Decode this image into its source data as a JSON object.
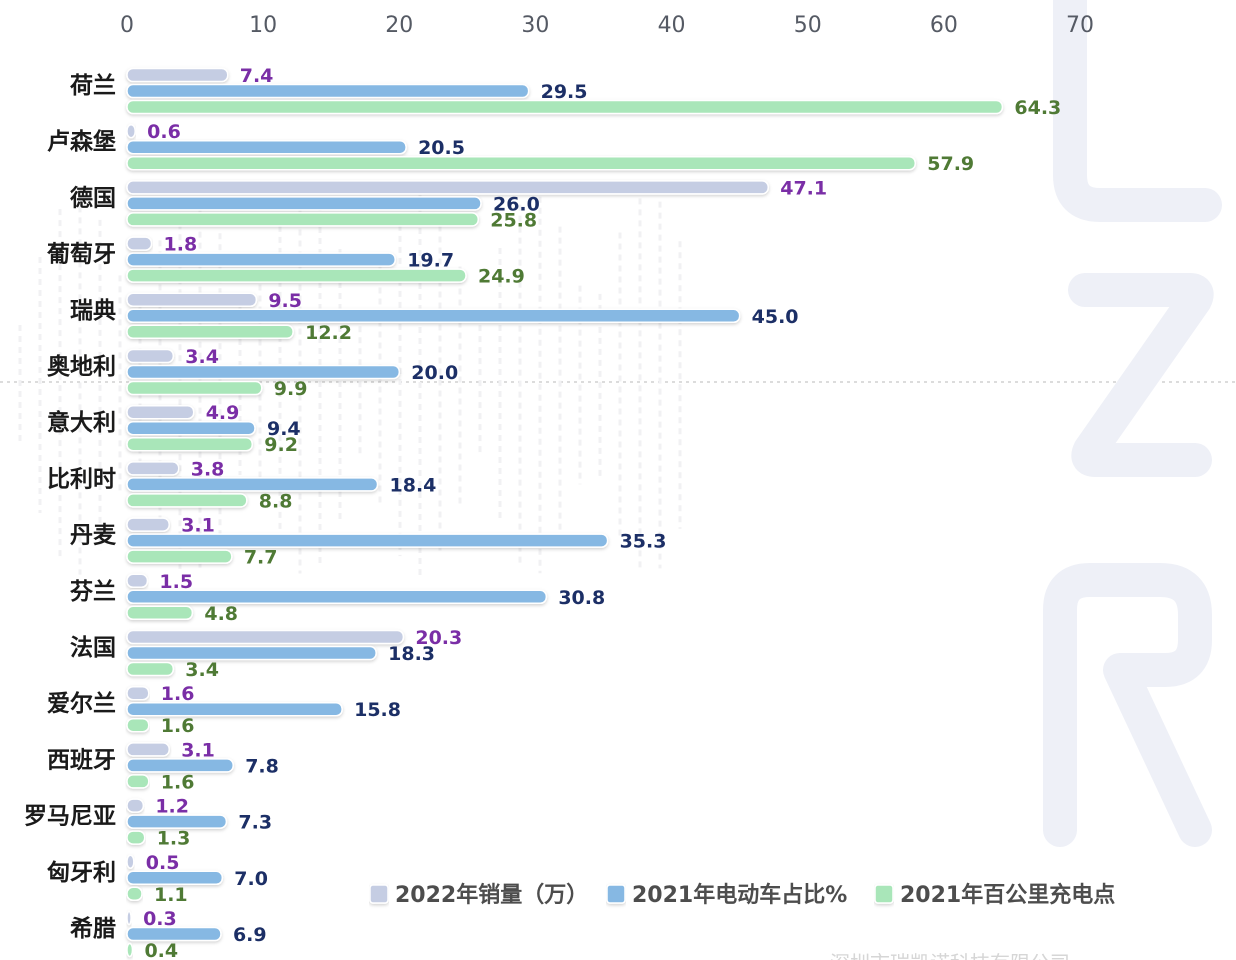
{
  "chart_data": {
    "type": "bar",
    "orientation": "horizontal",
    "categories": [
      "荷兰",
      "卢森堡",
      "德国",
      "葡萄牙",
      "瑞典",
      "奥地利",
      "意大利",
      "比利时",
      "丹麦",
      "芬兰",
      "法国",
      "爱尔兰",
      "西班牙",
      "罗马尼亚",
      "匈牙利",
      "希腊"
    ],
    "series": [
      {
        "name": "2022年销量（万）",
        "color": "#c5cde3",
        "label_color": "#7a2ea6",
        "values": [
          7.4,
          0.6,
          47.1,
          1.8,
          9.5,
          3.4,
          4.9,
          3.8,
          3.1,
          1.5,
          20.3,
          1.6,
          3.1,
          1.2,
          0.5,
          0.3
        ]
      },
      {
        "name": "2021年电动车占比%",
        "color": "#86b8e3",
        "label_color": "#1c2f66",
        "values": [
          29.5,
          20.5,
          26.0,
          19.7,
          45.0,
          20.0,
          9.4,
          18.4,
          35.3,
          30.8,
          18.3,
          15.8,
          7.8,
          7.3,
          7.0,
          6.9
        ]
      },
      {
        "name": "2021年百公里充电点",
        "color": "#a9e6b9",
        "label_color": "#4f7a35",
        "values": [
          64.3,
          57.9,
          25.8,
          24.9,
          12.2,
          9.9,
          9.2,
          8.8,
          7.7,
          4.8,
          3.4,
          1.6,
          1.6,
          1.3,
          1.1,
          0.4
        ]
      }
    ],
    "xlim": [
      0,
      70
    ],
    "xticks": [
      0,
      10,
      20,
      30,
      40,
      50,
      60,
      70
    ],
    "title": "",
    "xlabel": "",
    "ylabel": "",
    "legend_position": "bottom-right",
    "grid": false
  },
  "watermark_text": "深圳市瑞凯诺科技有限公司"
}
